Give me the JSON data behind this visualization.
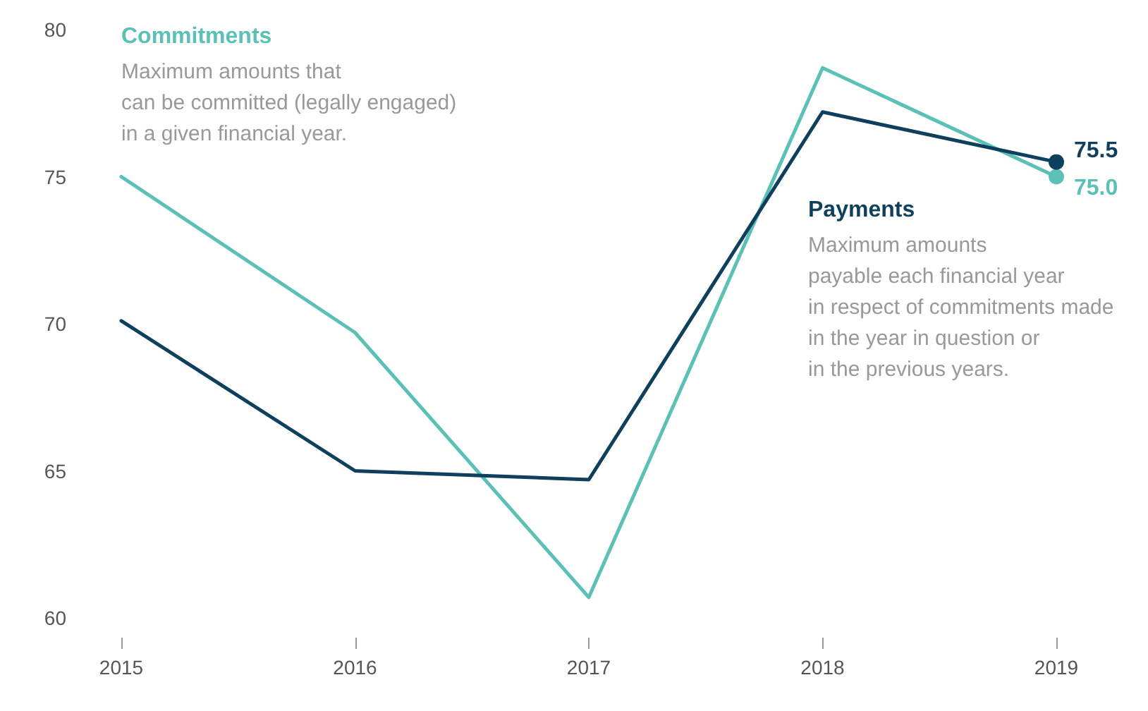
{
  "chart_data": {
    "type": "line",
    "categories": [
      "2015",
      "2016",
      "2017",
      "2018",
      "2019"
    ],
    "series": [
      {
        "name": "Commitments",
        "color": "#5bc0b5",
        "values": [
          75.0,
          69.7,
          60.7,
          78.7,
          75.0
        ],
        "value_labels": [
          null,
          null,
          null,
          null,
          "75.0"
        ]
      },
      {
        "name": "Payments",
        "color": "#0e3f5c",
        "values": [
          70.1,
          65.0,
          64.7,
          77.2,
          75.5
        ],
        "value_labels": [
          null,
          null,
          null,
          null,
          "75.5"
        ]
      }
    ],
    "annotations": [
      "Maximum amounts that\ncan be committed (legally engaged)\nin a given financial year.",
      "Maximum amounts\npayable each financial year\nin respect of commitments made\nin the year in question or\nin the previous years."
    ],
    "ylim": [
      60,
      80
    ],
    "yticks": [
      60,
      65,
      70,
      75,
      80
    ],
    "grid": false,
    "legend": false,
    "line_style": "solid"
  }
}
